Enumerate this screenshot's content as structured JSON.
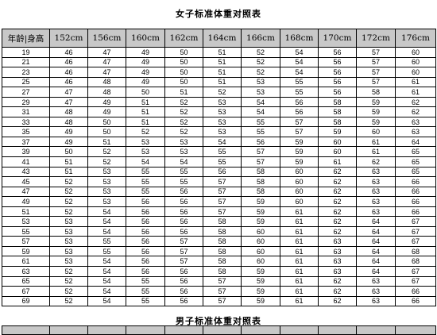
{
  "female_table": {
    "title": "女子标准体重对照表",
    "corner_header": "年龄|身高",
    "heights": [
      "152cm",
      "156cm",
      "160cm",
      "162cm",
      "164cm",
      "166cm",
      "168cm",
      "170cm",
      "172cm",
      "176cm"
    ],
    "rows": [
      {
        "age": "19",
        "values": [
          "46",
          "47",
          "49",
          "50",
          "51",
          "52",
          "54",
          "56",
          "57",
          "60"
        ]
      },
      {
        "age": "21",
        "values": [
          "46",
          "47",
          "49",
          "50",
          "51",
          "52",
          "54",
          "56",
          "57",
          "60"
        ]
      },
      {
        "age": "23",
        "values": [
          "46",
          "47",
          "49",
          "50",
          "51",
          "52",
          "54",
          "56",
          "57",
          "60"
        ]
      },
      {
        "age": "25",
        "values": [
          "46",
          "48",
          "49",
          "50",
          "51",
          "53",
          "55",
          "56",
          "57",
          "61"
        ]
      },
      {
        "age": "27",
        "values": [
          "47",
          "48",
          "50",
          "51",
          "52",
          "53",
          "55",
          "56",
          "58",
          "61"
        ]
      },
      {
        "age": "29",
        "values": [
          "47",
          "49",
          "51",
          "52",
          "53",
          "54",
          "56",
          "58",
          "59",
          "62"
        ]
      },
      {
        "age": "31",
        "values": [
          "48",
          "49",
          "51",
          "52",
          "53",
          "54",
          "56",
          "58",
          "59",
          "62"
        ]
      },
      {
        "age": "33",
        "values": [
          "48",
          "50",
          "51",
          "52",
          "53",
          "55",
          "57",
          "58",
          "59",
          "63"
        ]
      },
      {
        "age": "35",
        "values": [
          "49",
          "50",
          "52",
          "52",
          "53",
          "55",
          "57",
          "59",
          "60",
          "63"
        ]
      },
      {
        "age": "37",
        "values": [
          "49",
          "51",
          "53",
          "53",
          "54",
          "56",
          "59",
          "60",
          "61",
          "64"
        ]
      },
      {
        "age": "39",
        "values": [
          "50",
          "52",
          "53",
          "53",
          "55",
          "57",
          "59",
          "60",
          "61",
          "65"
        ]
      },
      {
        "age": "41",
        "values": [
          "51",
          "52",
          "54",
          "54",
          "55",
          "57",
          "59",
          "61",
          "62",
          "65"
        ]
      },
      {
        "age": "43",
        "values": [
          "51",
          "53",
          "55",
          "55",
          "56",
          "58",
          "60",
          "62",
          "63",
          "65"
        ]
      },
      {
        "age": "45",
        "values": [
          "52",
          "53",
          "55",
          "55",
          "57",
          "58",
          "60",
          "62",
          "63",
          "66"
        ]
      },
      {
        "age": "47",
        "values": [
          "52",
          "53",
          "55",
          "56",
          "57",
          "58",
          "60",
          "62",
          "63",
          "66"
        ]
      },
      {
        "age": "49",
        "values": [
          "52",
          "53",
          "56",
          "56",
          "57",
          "59",
          "60",
          "62",
          "63",
          "66"
        ]
      },
      {
        "age": "51",
        "values": [
          "52",
          "54",
          "56",
          "56",
          "57",
          "59",
          "61",
          "62",
          "63",
          "66"
        ]
      },
      {
        "age": "53",
        "values": [
          "53",
          "54",
          "56",
          "56",
          "58",
          "59",
          "61",
          "62",
          "64",
          "67"
        ]
      },
      {
        "age": "55",
        "values": [
          "53",
          "54",
          "56",
          "56",
          "58",
          "60",
          "61",
          "62",
          "64",
          "67"
        ]
      },
      {
        "age": "57",
        "values": [
          "53",
          "55",
          "56",
          "57",
          "58",
          "60",
          "61",
          "63",
          "64",
          "67"
        ]
      },
      {
        "age": "59",
        "values": [
          "53",
          "55",
          "56",
          "57",
          "58",
          "60",
          "61",
          "63",
          "64",
          "68"
        ]
      },
      {
        "age": "61",
        "values": [
          "53",
          "54",
          "56",
          "57",
          "58",
          "60",
          "61",
          "63",
          "64",
          "68"
        ]
      },
      {
        "age": "63",
        "values": [
          "52",
          "54",
          "56",
          "56",
          "58",
          "59",
          "61",
          "63",
          "64",
          "67"
        ]
      },
      {
        "age": "65",
        "values": [
          "52",
          "54",
          "55",
          "56",
          "57",
          "59",
          "61",
          "62",
          "63",
          "67"
        ]
      },
      {
        "age": "67",
        "values": [
          "52",
          "54",
          "55",
          "56",
          "57",
          "59",
          "61",
          "62",
          "63",
          "66"
        ]
      },
      {
        "age": "69",
        "values": [
          "52",
          "54",
          "55",
          "56",
          "57",
          "59",
          "61",
          "62",
          "63",
          "66"
        ]
      }
    ]
  },
  "male_table": {
    "title": "男子标准体重对照表"
  }
}
